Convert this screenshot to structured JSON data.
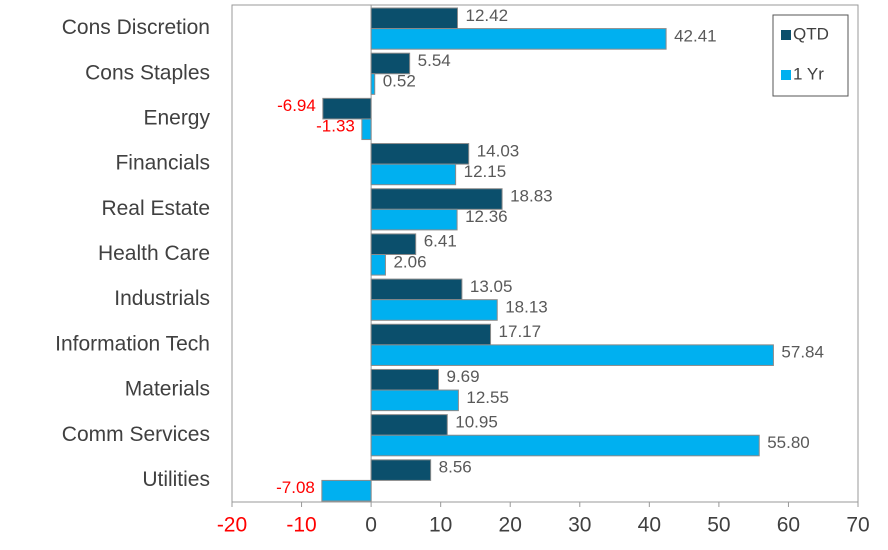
{
  "chart_data": {
    "type": "barh",
    "categories": [
      "Cons Discretion",
      "Cons Staples",
      "Energy",
      "Financials",
      "Real Estate",
      "Health Care",
      "Industrials",
      "Information Tech",
      "Materials",
      "Comm Services",
      "Utilities"
    ],
    "series": [
      {
        "name": "QTD",
        "color": "#0b4f6c",
        "values": [
          12.42,
          5.54,
          -6.94,
          14.03,
          18.83,
          6.41,
          13.05,
          17.17,
          9.69,
          10.95,
          8.56
        ],
        "value_labels": [
          "12.42",
          "5.54",
          "-6.94",
          "14.03",
          "18.83",
          "6.41",
          "13.05",
          "17.17",
          "9.69",
          "10.95",
          "8.56"
        ]
      },
      {
        "name": "1 Yr",
        "color": "#00b0f0",
        "values": [
          42.41,
          0.52,
          -1.33,
          12.15,
          12.36,
          2.06,
          18.13,
          57.84,
          12.55,
          55.8,
          -7.08
        ],
        "value_labels": [
          "42.41",
          "0.52",
          "-1.33",
          "12.15",
          "12.36",
          "2.06",
          "18.13",
          "57.84",
          "12.55",
          "55.80",
          "-7.08"
        ]
      }
    ],
    "xlim": [
      -20,
      70
    ],
    "xticks": [
      -20,
      -10,
      0,
      10,
      20,
      30,
      40,
      50,
      60,
      70
    ],
    "negative_color": "#ff0000",
    "legend": "upper right"
  }
}
